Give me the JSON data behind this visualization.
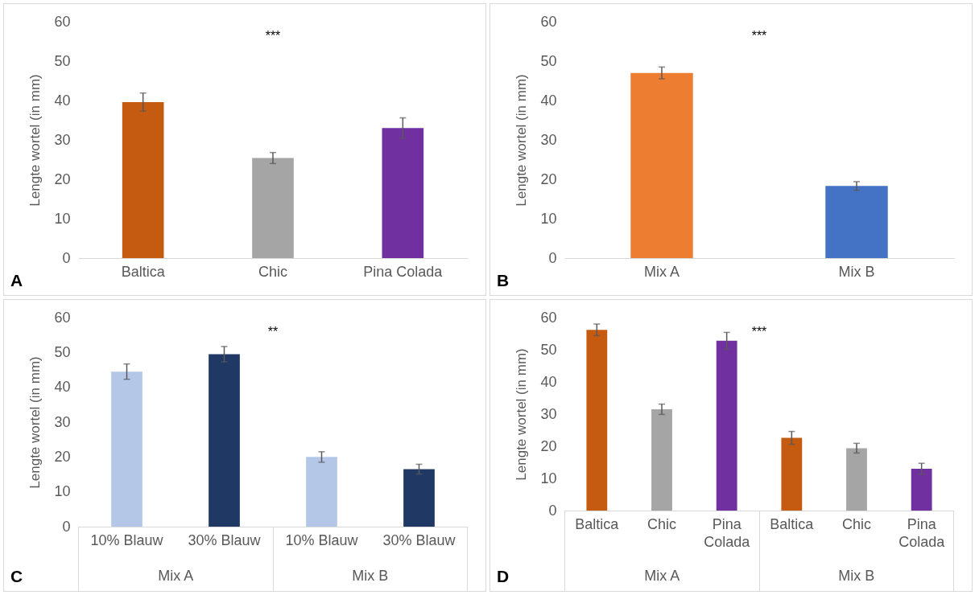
{
  "chart_data": [
    {
      "type": "bar",
      "title": "A",
      "ylabel": "Lengte wortel (in mm)",
      "categories": [
        "Baltica",
        "Chic",
        "Pina Colada"
      ],
      "values": [
        39.6,
        25.4,
        33.0
      ],
      "errors": [
        2.3,
        1.4,
        2.6
      ],
      "colors": [
        "#c55a11",
        "#a5a5a5",
        "#7030a0"
      ],
      "ylim": [
        0,
        60
      ],
      "yticks": [
        0,
        10,
        20,
        30,
        40,
        50,
        60
      ],
      "annotations": [
        "***"
      ]
    },
    {
      "type": "bar",
      "title": "B",
      "ylabel": "Lengte wortel (in mm)",
      "categories": [
        "Mix A",
        "Mix B"
      ],
      "values": [
        47.0,
        18.3
      ],
      "errors": [
        1.5,
        1.1
      ],
      "colors": [
        "#ed7d31",
        "#4472c4"
      ],
      "ylim": [
        0,
        60
      ],
      "yticks": [
        0,
        10,
        20,
        30,
        40,
        50,
        60
      ],
      "annotations": [
        "***"
      ]
    },
    {
      "type": "bar",
      "title": "C",
      "ylabel": "Lengte wortel (in mm)",
      "categories": [
        "10% Blauw",
        "30% Blauw",
        "10% Blauw",
        "30% Blauw"
      ],
      "values": [
        44.5,
        49.5,
        20.0,
        16.5
      ],
      "errors": [
        2.2,
        2.2,
        1.5,
        1.4
      ],
      "colors": [
        "#b4c7e7",
        "#203864",
        "#b4c7e7",
        "#203864"
      ],
      "ylim": [
        0,
        60
      ],
      "yticks": [
        0,
        10,
        20,
        30,
        40,
        50,
        60
      ],
      "annotations": [
        "**",
        "Mix A",
        "Mix B"
      ]
    },
    {
      "type": "bar",
      "title": "D",
      "ylabel": "Lengte wortel (in mm)",
      "categories": [
        "Baltica",
        "Chic",
        "Pina Colada",
        "Baltica",
        "Chic",
        "Pina Colada"
      ],
      "values": [
        56.2,
        31.5,
        52.8,
        22.6,
        19.4,
        13.0
      ],
      "errors": [
        1.8,
        1.6,
        2.6,
        2.0,
        1.5,
        1.7
      ],
      "colors": [
        "#c55a11",
        "#a5a5a5",
        "#7030a0",
        "#c55a11",
        "#a5a5a5",
        "#7030a0"
      ],
      "ylim": [
        0,
        60
      ],
      "yticks": [
        0,
        10,
        20,
        30,
        40,
        50,
        60
      ],
      "annotations": [
        "***",
        "Mix A",
        "Mix B"
      ]
    }
  ]
}
